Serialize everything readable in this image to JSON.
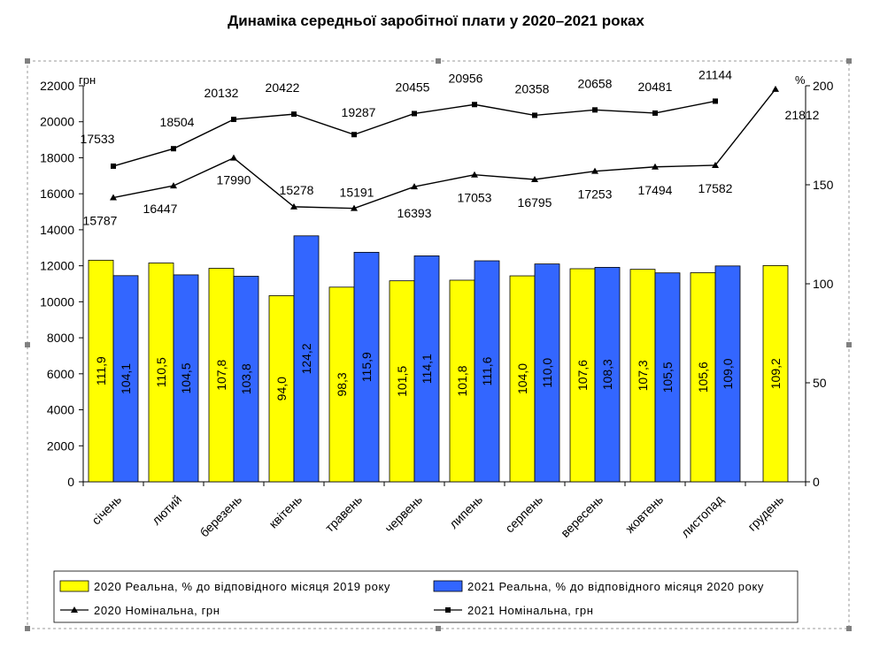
{
  "title": "Динаміка середньої заробітної плати у 2020–2021 роках",
  "chart_data": {
    "type": "bar+line",
    "title": "Динаміка середньої заробітної плати у 2020–2021 роках",
    "categories": [
      "січень",
      "лютий",
      "березень",
      "квітень",
      "травень",
      "червень",
      "липень",
      "серпень",
      "вересень",
      "жовтень",
      "листопад",
      "грудень"
    ],
    "left_axis": {
      "unit": "грн",
      "min": 0,
      "max": 22000,
      "step": 2000
    },
    "right_axis": {
      "unit": "%",
      "min": 0,
      "max": 200,
      "step": 50
    },
    "bar_series": [
      {
        "name": "2020 Реальна, % до відповідного місяця 2019 року",
        "color": "#ffff00",
        "values": [
          111.9,
          110.5,
          107.8,
          94.0,
          98.3,
          101.5,
          101.8,
          104.0,
          107.6,
          107.3,
          105.6,
          109.2
        ],
        "labels": [
          "111,9",
          "110,5",
          "107,8",
          "94,0",
          "98,3",
          "101,5",
          "101,8",
          "104,0",
          "107,6",
          "107,3",
          "105,6",
          "109,2"
        ]
      },
      {
        "name": "2021 Реальна, % до відповідного місяця 2020 року",
        "color": "#3366ff",
        "values": [
          104.1,
          104.5,
          103.8,
          124.2,
          115.9,
          114.1,
          111.6,
          110.0,
          108.3,
          105.5,
          109.0,
          null
        ],
        "labels": [
          "104,1",
          "104,5",
          "103,8",
          "124,2",
          "115,9",
          "114,1",
          "111,6",
          "110,0",
          "108,3",
          "105,5",
          "109,0",
          ""
        ]
      }
    ],
    "line_series": [
      {
        "name": "2020 Номінальна, грн",
        "marker": "triangle",
        "values": [
          15787,
          16447,
          17990,
          15278,
          15191,
          16393,
          17053,
          16795,
          17253,
          17494,
          17582,
          21812
        ]
      },
      {
        "name": "2021 Номінальна, грн",
        "marker": "square",
        "values": [
          17533,
          18504,
          20132,
          20422,
          19287,
          20455,
          20956,
          20358,
          20658,
          20481,
          21144,
          null
        ]
      }
    ],
    "legend": [
      {
        "label": "2020 Реальна, % до відповідного місяця 2019 року",
        "kind": "bar",
        "color": "#ffff00"
      },
      {
        "label": "2021 Реальна, % до відповідного місяця 2020 року",
        "kind": "bar",
        "color": "#3366ff"
      },
      {
        "label": "2020 Номінальна, грн",
        "kind": "line",
        "marker": "triangle"
      },
      {
        "label": "2021 Номінальна, грн",
        "kind": "line",
        "marker": "square"
      }
    ],
    "legend_position": "bottom"
  }
}
